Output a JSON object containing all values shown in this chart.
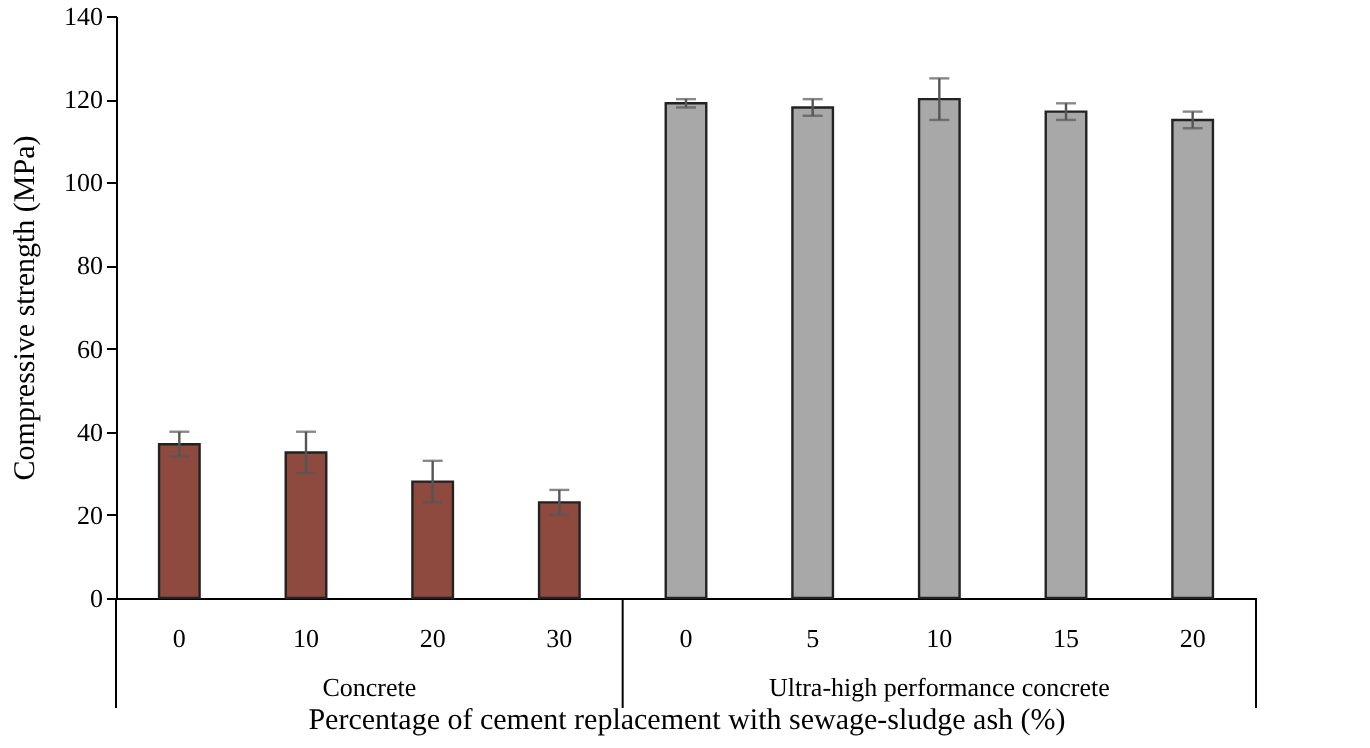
{
  "chart_data": {
    "type": "bar",
    "xlabel": "Percentage of cement replacement with sewage-sludge ash (%)",
    "ylabel": "Compressive strength (MPa)",
    "categories": [
      "0",
      "10",
      "20",
      "30",
      "0",
      "5",
      "10",
      "15",
      "20"
    ],
    "values": [
      37,
      35,
      28,
      23,
      119,
      118,
      120,
      117,
      115
    ],
    "errors": [
      3,
      5,
      5,
      3,
      1,
      2,
      5,
      2,
      2
    ],
    "colors": [
      "#8e4a3e",
      "#8e4a3e",
      "#8e4a3e",
      "#8e4a3e",
      "#a8a8a8",
      "#a8a8a8",
      "#a8a8a8",
      "#a8a8a8",
      "#a8a8a8"
    ],
    "ylim": [
      0,
      140
    ],
    "yticks": [
      0,
      20,
      40,
      60,
      80,
      100,
      120,
      140
    ],
    "annotations": [
      "Concrete",
      "Ultra-high performance concrete"
    ]
  }
}
